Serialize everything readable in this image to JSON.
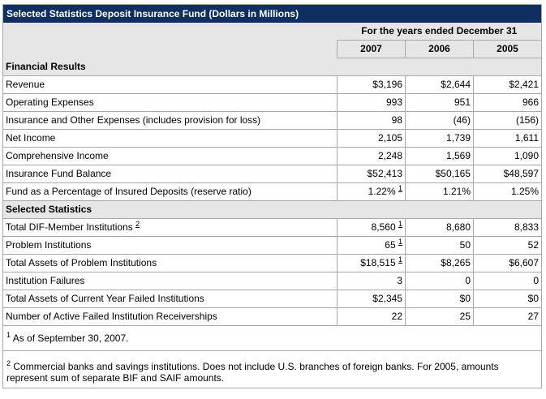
{
  "title": "Selected Statistics Deposit Insurance Fund (Dollars in Millions)",
  "period_label": "For the years ended December 31",
  "years": [
    "2007",
    "2006",
    "2005"
  ],
  "sections": [
    {
      "heading": "Financial Results",
      "rows": [
        {
          "label": "Revenue",
          "values": [
            "$3,196",
            "$2,644",
            "$2,421"
          ],
          "note": ""
        },
        {
          "label": "Operating Expenses",
          "values": [
            "993",
            "951",
            "966"
          ],
          "note": ""
        },
        {
          "label": "Insurance and Other Expenses (includes provision for loss)",
          "values": [
            "98",
            "(46)",
            "(156)"
          ],
          "note": ""
        },
        {
          "label": "Net Income",
          "values": [
            "2,105",
            "1,739",
            "1,611"
          ],
          "note": ""
        },
        {
          "label": "Comprehensive Income",
          "values": [
            "2,248",
            "1,569",
            "1,090"
          ],
          "note": ""
        },
        {
          "label": "Insurance Fund Balance",
          "values": [
            "$52,413",
            "$50,165",
            "$48,597"
          ],
          "note": ""
        },
        {
          "label": "Fund as a Percentage of Insured Deposits (reserve ratio)",
          "values": [
            "1.22%",
            "1.21%",
            "1.25%"
          ],
          "note": "1"
        }
      ]
    },
    {
      "heading": "Selected Statistics",
      "rows": [
        {
          "label": "Total DIF-Member Institutions",
          "label_note": "2",
          "values": [
            "8,560",
            "8,680",
            "8,833"
          ],
          "note": "1"
        },
        {
          "label": "Problem Institutions",
          "values": [
            "65",
            "50",
            "52"
          ],
          "note": "1"
        },
        {
          "label": "Total Assets of Problem Institutions",
          "values": [
            "$18,515",
            "$8,265",
            "$6,607"
          ],
          "note": "1"
        },
        {
          "label": "Institution Failures",
          "values": [
            "3",
            "0",
            "0"
          ],
          "note": ""
        },
        {
          "label": "Total Assets of Current Year Failed Institutions",
          "values": [
            "$2,345",
            "$0",
            "$0"
          ],
          "note": ""
        },
        {
          "label": "Number of Active Failed Institution Receiverships",
          "values": [
            "22",
            "25",
            "27"
          ],
          "note": ""
        }
      ]
    }
  ],
  "footnotes": [
    {
      "mark": "1",
      "text": "As of September 30, 2007."
    },
    {
      "mark": "2",
      "text": "Commercial banks and savings institutions. Does not include U.S. branches of foreign banks. For 2005, amounts represent sum of separate BIF and SAIF amounts."
    }
  ],
  "colors": {
    "title_bg": "#0f2f63",
    "header_bg": "#e6e6e6",
    "border": "#a8a8a8"
  }
}
